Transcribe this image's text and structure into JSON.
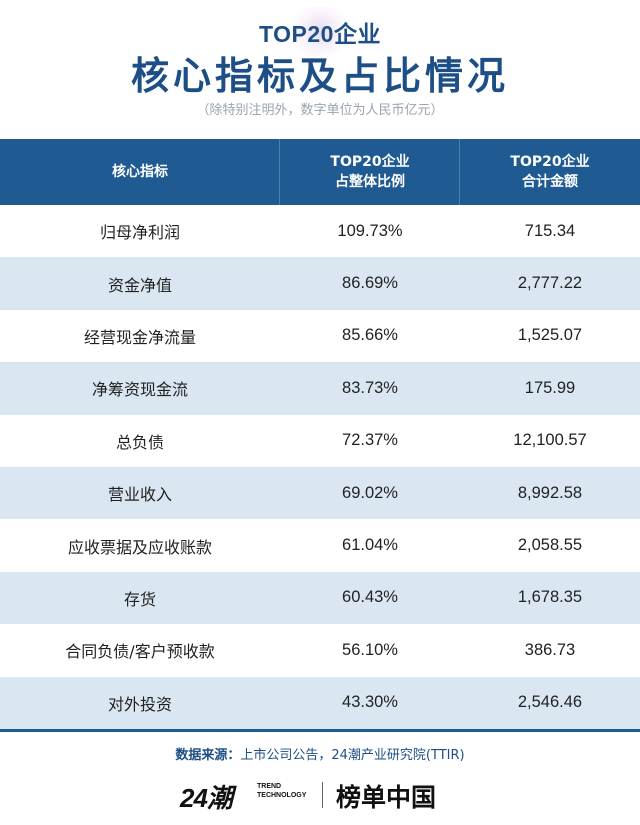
{
  "header": {
    "subtitle": "TOP20企业",
    "title": "核心指标及占比情况",
    "note": "（除特别注明外，数字单位为人民币亿元）"
  },
  "table": {
    "columns": {
      "indicator": "核心指标",
      "ratio_line1": "TOP20企业",
      "ratio_line2": "占整体比例",
      "amount_line1": "TOP20企业",
      "amount_line2": "合计金额"
    },
    "rows": [
      {
        "indicator": "归母净利润",
        "ratio": "109.73%",
        "amount": "715.34"
      },
      {
        "indicator": "资金净值",
        "ratio": "86.69%",
        "amount": "2,777.22"
      },
      {
        "indicator": "经营现金净流量",
        "ratio": "85.66%",
        "amount": "1,525.07"
      },
      {
        "indicator": "净筹资现金流",
        "ratio": "83.73%",
        "amount": "175.99"
      },
      {
        "indicator": "总负债",
        "ratio": "72.37%",
        "amount": "12,100.57"
      },
      {
        "indicator": "营业收入",
        "ratio": "69.02%",
        "amount": "8,992.58"
      },
      {
        "indicator": "应收票据及应收账款",
        "ratio": "61.04%",
        "amount": "2,058.55"
      },
      {
        "indicator": "存货",
        "ratio": "60.43%",
        "amount": "1,678.35"
      },
      {
        "indicator": "合同负债/客户预收款",
        "ratio": "56.10%",
        "amount": "386.73"
      },
      {
        "indicator": "对外投资",
        "ratio": "43.30%",
        "amount": "2,546.46"
      }
    ]
  },
  "source": {
    "label": "数据来源：",
    "text": "上市公司公告，24潮产业研究院(TTIR)"
  },
  "footer": {
    "logo_number": "24潮",
    "logo_en_line1": "TREND",
    "logo_en_line2": "TECHNOLOGY",
    "brand": "榜单中国"
  },
  "colors": {
    "primary": "#1f5a92",
    "stripe": "#dae7f2",
    "title": "#1d4f86"
  }
}
